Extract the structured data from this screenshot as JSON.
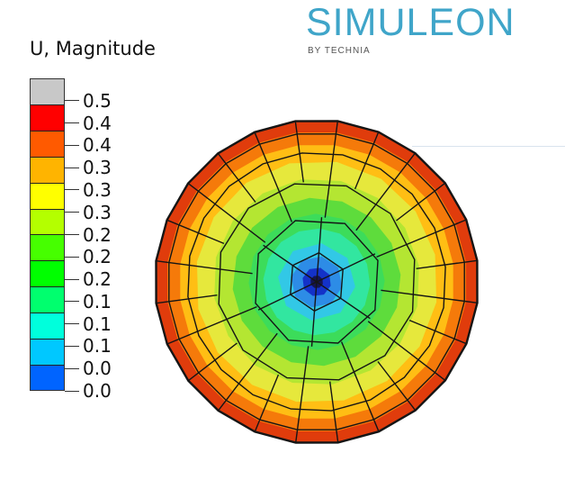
{
  "brand": {
    "name": "SIMULEON",
    "sub": "BY TECHNIA"
  },
  "legend": {
    "title": "U, Magnitude",
    "labels": [
      "0.5",
      "0.4",
      "0.4",
      "0.3",
      "0.3",
      "0.3",
      "0.2",
      "0.2",
      "0.2",
      "0.1",
      "0.1",
      "0.1",
      "0.0",
      "0.0"
    ],
    "colors": [
      "#c8c8c8",
      "#ff0000",
      "#ff5a00",
      "#ffb400",
      "#ffff00",
      "#b4ff00",
      "#46ff00",
      "#00ff00",
      "#00ff6e",
      "#00ffdc",
      "#00c8ff",
      "#0064ff",
      "#0000ff",
      "#323232"
    ]
  },
  "plot": {
    "contour_band_colors": [
      "#e03c0c",
      "#f57a0a",
      "#ffbe14",
      "#e6e83c",
      "#b4e632",
      "#5edc3c",
      "#3cdc5a",
      "#32e6a0",
      "#32c8e6",
      "#2d8ce6",
      "#1432c8",
      "#141450"
    ],
    "mesh_color": "#151515"
  }
}
